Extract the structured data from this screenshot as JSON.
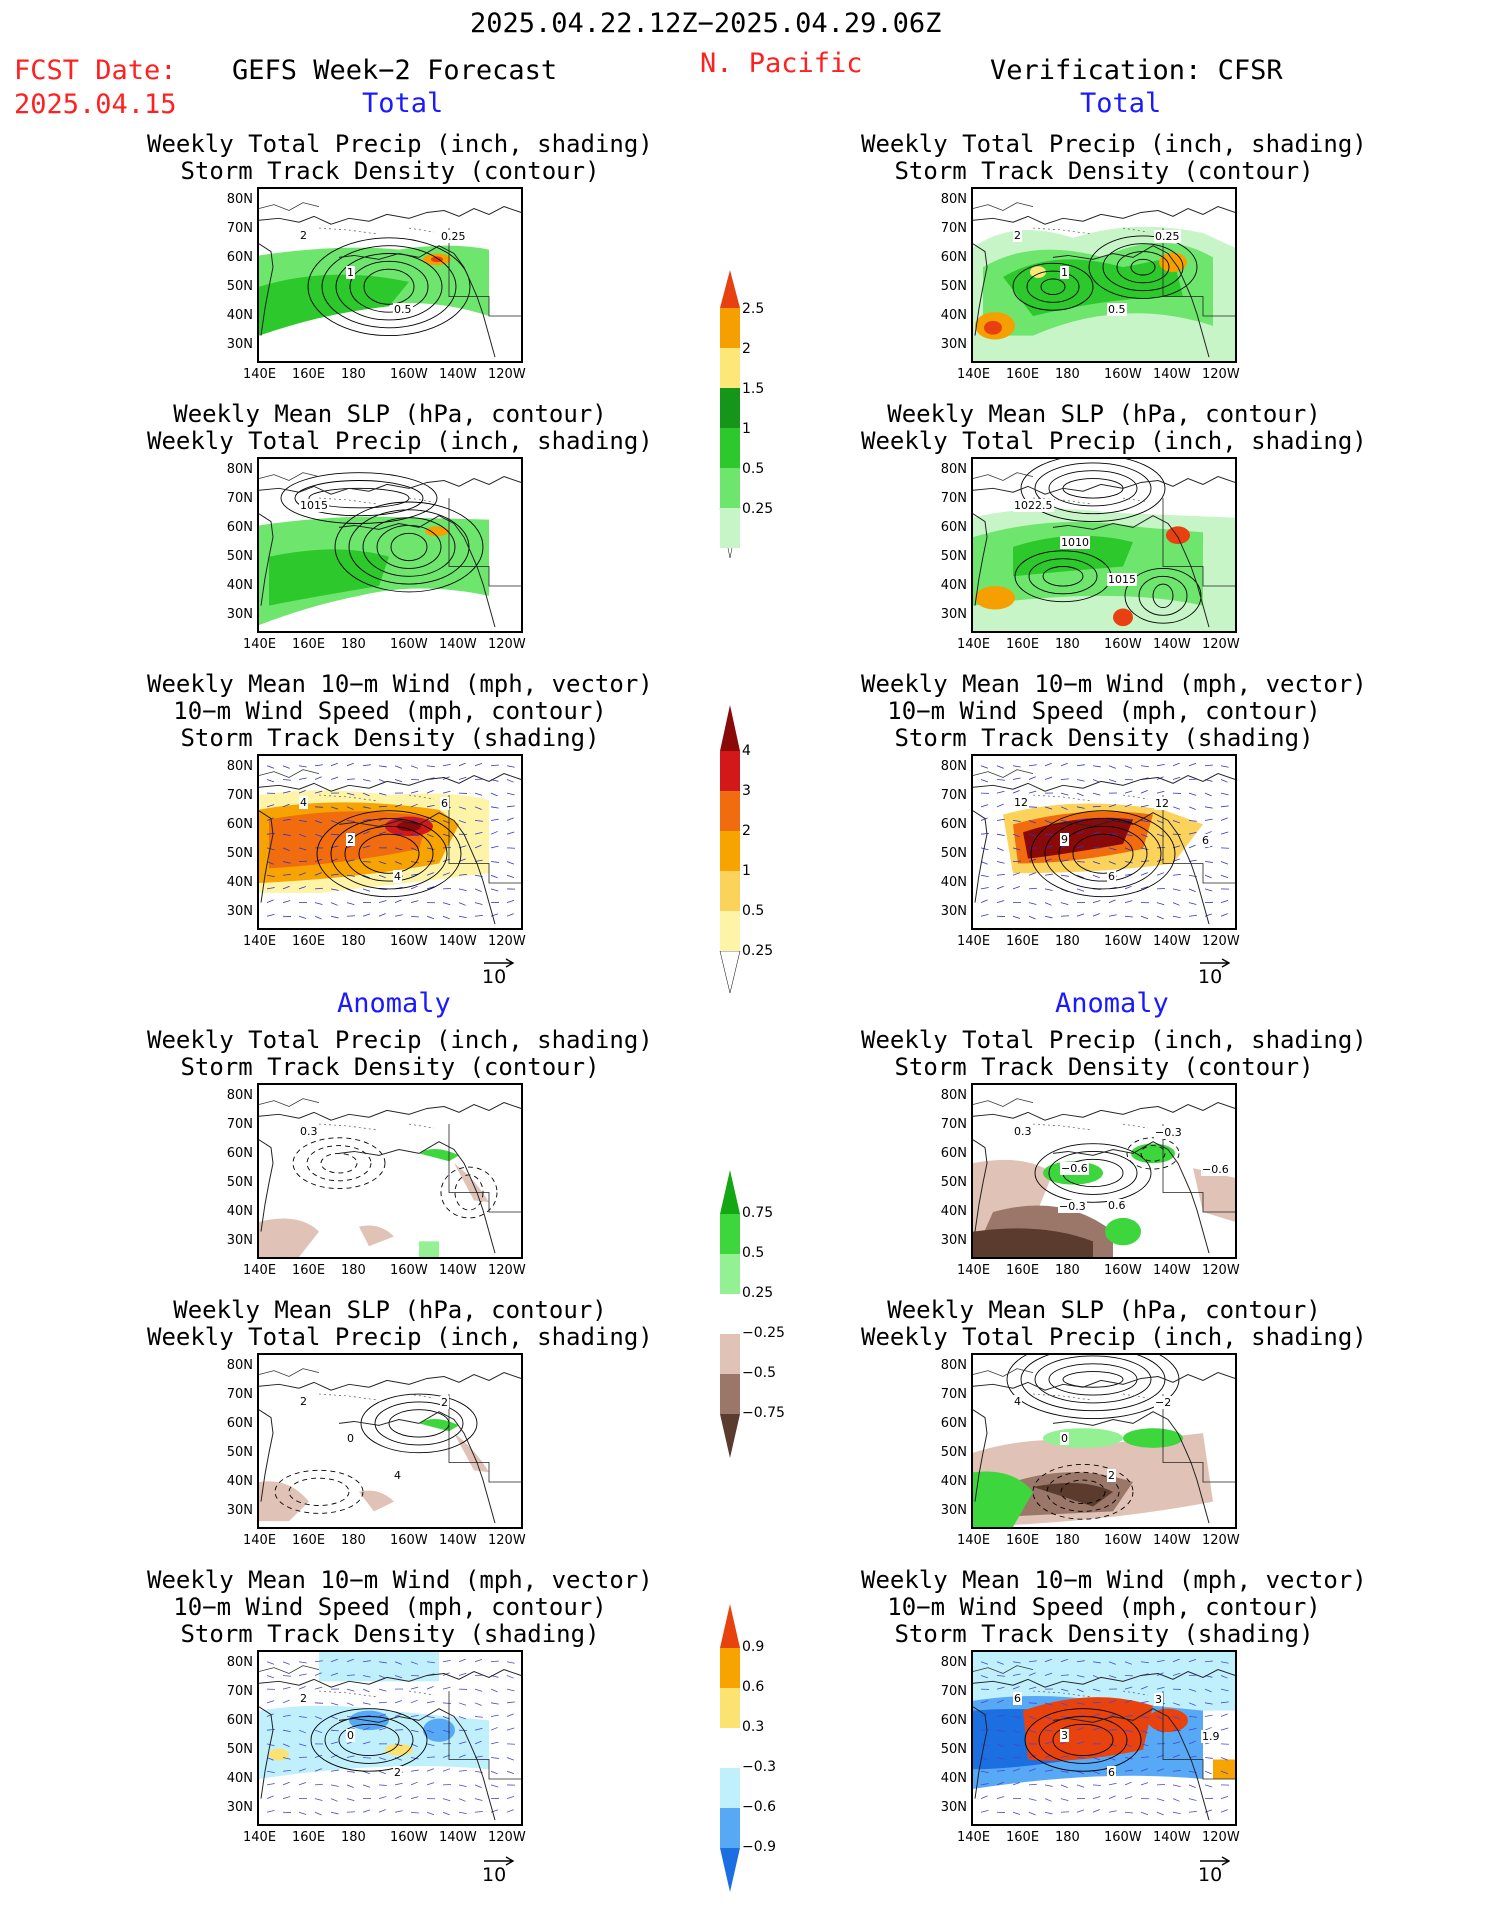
{
  "header": {
    "date_range": "2025.04.22.12Z−2025.04.29.06Z",
    "region": "N. Pacific",
    "fcst_label": "FCST Date:",
    "fcst_date": "2025.04.15",
    "left_title": "GEFS Week−2 Forecast",
    "right_title": "Verification: CFSR"
  },
  "sections": {
    "total": "Total",
    "anomaly": "Anomaly"
  },
  "titles": {
    "precip_storm": [
      "Weekly Total Precip (inch, shading)",
      "Storm Track Density (contour)"
    ],
    "slp_precip": [
      "Weekly Mean SLP (hPa, contour)",
      "Weekly Total Precip (inch, shading)"
    ],
    "wind_storm": [
      "Weekly Mean 10−m Wind (mph, vector)",
      "10−m Wind Speed (mph, contour)",
      "Storm Track Density (shading)"
    ]
  },
  "axes": {
    "lat": [
      "80N",
      "70N",
      "60N",
      "50N",
      "40N",
      "30N"
    ],
    "lon": [
      "140E",
      "160E",
      "180",
      "160W",
      "140W",
      "120W"
    ]
  },
  "vector_ref": "10",
  "colorbars": {
    "precip_total": [
      "0.25",
      "0.5",
      "1",
      "1.5",
      "2",
      "2.5"
    ],
    "storm_total": [
      "0.25",
      "0.5",
      "1",
      "2",
      "3",
      "4"
    ],
    "precip_anom": [
      "−0.75",
      "−0.5",
      "−0.25",
      "0.25",
      "0.5",
      "0.75"
    ],
    "storm_anom": [
      "−0.9",
      "−0.6",
      "−0.3",
      "0.3",
      "0.6",
      "0.9"
    ]
  },
  "contour_labels": {
    "f_total_precip": [
      "2",
      "1",
      "0.5",
      "0.25"
    ],
    "f_total_slp": [
      "1015"
    ],
    "f_total_wind": [
      "4",
      "2",
      "4",
      "6"
    ],
    "v_total_precip": [
      "2",
      "1",
      "0.5",
      "0.25"
    ],
    "v_total_slp": [
      "1022.5",
      "1010",
      "1015"
    ],
    "v_total_wind": [
      "12",
      "9",
      "6",
      "12",
      "6"
    ],
    "f_anom_precip": [
      "0.3"
    ],
    "f_anom_slp": [
      "2",
      "0",
      "4",
      "2"
    ],
    "f_anom_wind": [
      "2",
      "0",
      "2"
    ],
    "v_anom_precip": [
      "0.3",
      "−0.6",
      "0.6",
      "−0.3",
      "−0.6",
      "−0.3"
    ],
    "v_anom_slp": [
      "4",
      "0",
      "2",
      "−2"
    ],
    "v_anom_wind": [
      "6",
      "3",
      "6",
      "3",
      "1.9"
    ]
  },
  "colors": {
    "precip": [
      "#c8f5c8",
      "#6ee66e",
      "#2cc82c",
      "#15961b",
      "#fce778",
      "#f5a000",
      "#e84010"
    ],
    "storm": [
      "#fdf4a8",
      "#fbd35a",
      "#f7a300",
      "#f06c0e",
      "#d21818",
      "#8a0a0a"
    ],
    "anom_precip": [
      "#5a3b2e",
      "#9b776a",
      "#e0c3b6",
      "#ffffff",
      "#93f093",
      "#3dd63d",
      "#13a813"
    ],
    "anom_storm": [
      "#1c6fe0",
      "#57a8f5",
      "#bff0fb",
      "#ffffff",
      "#fce270",
      "#f7a300",
      "#e8420e"
    ]
  }
}
